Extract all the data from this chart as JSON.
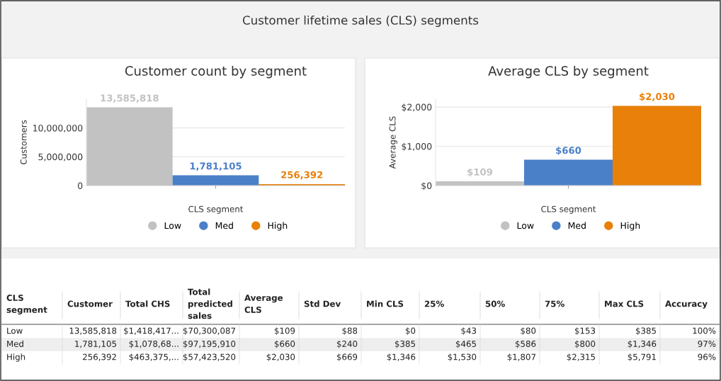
{
  "chart_data": [
    {
      "type": "bar",
      "title": "Customer count by segment",
      "xlabel": "CLS segment",
      "ylabel": "Customers",
      "categories": [
        null
      ],
      "series": [
        {
          "name": "Low",
          "color": "#c2c2c2",
          "values": [
            13585818
          ],
          "value_labels": [
            "13,585,818"
          ]
        },
        {
          "name": "Med",
          "color": "#4a80c8",
          "values": [
            1781105
          ],
          "value_labels": [
            "1,781,105"
          ]
        },
        {
          "name": "High",
          "color": "#e8800a",
          "values": [
            256392
          ],
          "value_labels": [
            "256,392"
          ]
        }
      ],
      "ylim": [
        0,
        15000000
      ],
      "yticks": [
        0,
        {
          "value": 5000000,
          "label": "5,000,000"
        },
        {
          "value": 10000000,
          "label": "10,000,000"
        }
      ],
      "grid": "y",
      "legend": "bottom",
      "annotations": [
        "Customer lifetime sales (CLS) segments"
      ]
    },
    {
      "type": "bar",
      "title": "Average CLS by segment",
      "xlabel": "CLS segment",
      "ylabel": "Average CLS",
      "categories": [
        null
      ],
      "series": [
        {
          "name": "Low",
          "color": "#c2c2c2",
          "values": [
            109
          ],
          "value_labels": [
            "$109"
          ]
        },
        {
          "name": "Med",
          "color": "#4a80c8",
          "values": [
            660
          ],
          "value_labels": [
            "$660"
          ]
        },
        {
          "name": "High",
          "color": "#e8800a",
          "values": [
            2030
          ],
          "value_labels": [
            "$2,030"
          ]
        }
      ],
      "ylim": [
        0,
        2200
      ],
      "yticks": [
        {
          "value": 0,
          "label": "$0"
        },
        {
          "value": 1000,
          "label": "$1,000"
        },
        {
          "value": 2000,
          "label": "$2,000"
        }
      ],
      "grid": "y",
      "legend": "bottom"
    },
    {
      "type": "other",
      "categories": [
        "CLS\nsegment",
        "Customer",
        "Total CHS",
        "Total\npredicted\nsales",
        "Average\nCLS",
        "Std Dev",
        "Min CLS",
        "25%",
        "50%",
        "75%",
        "Max CLS",
        "Accuracy"
      ],
      "annotations": [
        "Low",
        "13,585,818",
        "$1,418,417...",
        "$70,300,087",
        "$109",
        "$88",
        "$0",
        "$43",
        "$80",
        "$153",
        "$385",
        "100%",
        "Med",
        "1,781,105",
        "$1,078,68...",
        "$97,195,910",
        "$660",
        "$240",
        "$385",
        "$465",
        "$586",
        "$800",
        "$1,346",
        "97%",
        "High",
        "256,392",
        "$463,375,...",
        "$57,423,520",
        "$2,030",
        "$669",
        "$1,346",
        "$1,530",
        "$1,807",
        "$2,315",
        "$5,791",
        "96%"
      ]
    }
  ]
}
